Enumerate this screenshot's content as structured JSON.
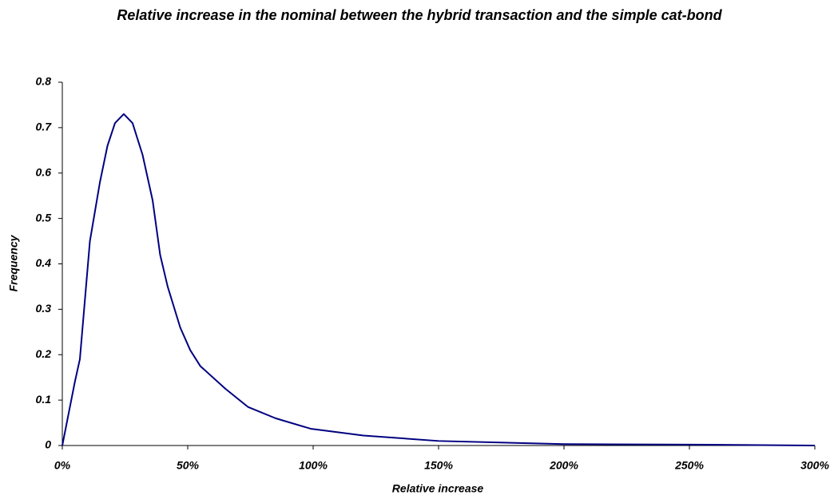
{
  "chart_data": {
    "type": "line",
    "title": "Relative increase in the nominal between the hybrid transaction and the simple cat-bond",
    "x_label": "Relative increase",
    "y_label": "Frequency",
    "x": [
      0,
      5,
      7,
      11,
      15,
      18,
      21,
      24.5,
      28,
      32,
      36,
      39,
      42,
      47,
      51,
      55,
      65,
      74,
      85,
      99,
      120,
      150,
      200,
      250,
      300
    ],
    "series": [
      {
        "name": "Frequency",
        "color": "#000080",
        "values": [
          0,
          0.14,
          0.19,
          0.45,
          0.58,
          0.66,
          0.71,
          0.73,
          0.71,
          0.64,
          0.54,
          0.42,
          0.35,
          0.26,
          0.21,
          0.175,
          0.125,
          0.085,
          0.06,
          0.037,
          0.022,
          0.01,
          0.003,
          0.002,
          0
        ]
      }
    ],
    "xlim": [
      0,
      300
    ],
    "xticks": [
      {
        "value": 0,
        "label": "0%"
      },
      {
        "value": 50,
        "label": "50%"
      },
      {
        "value": 100,
        "label": "100%"
      },
      {
        "value": 150,
        "label": "150%"
      },
      {
        "value": 200,
        "label": "200%"
      },
      {
        "value": 250,
        "label": "250%"
      },
      {
        "value": 300,
        "label": "300%"
      }
    ],
    "ylim": [
      0,
      0.8
    ],
    "yticks": [
      0,
      0.1,
      0.2,
      0.3,
      0.4,
      0.5,
      0.6,
      0.7,
      0.8
    ],
    "grid": false
  }
}
